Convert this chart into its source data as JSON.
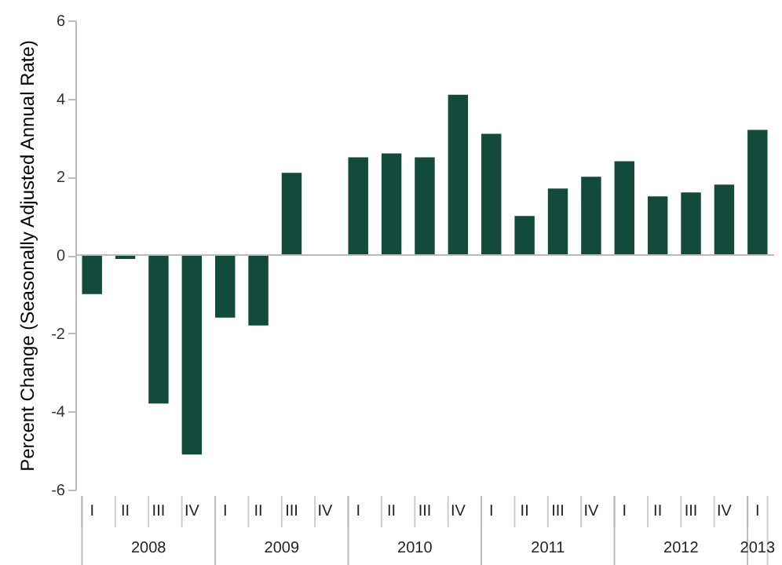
{
  "chart_data": {
    "type": "bar",
    "ylabel": "Percent Change (Seasonally Adjusted Annual Rate)",
    "categories": [
      "I",
      "II",
      "III",
      "IV",
      "I",
      "II",
      "III",
      "IV",
      "I",
      "II",
      "III",
      "IV",
      "I",
      "II",
      "III",
      "IV",
      "I",
      "II",
      "III",
      "IV",
      "I"
    ],
    "values": [
      -1.0,
      -0.1,
      -3.8,
      -5.1,
      -1.6,
      -1.8,
      2.1,
      null,
      2.5,
      2.6,
      2.5,
      4.1,
      3.1,
      1.0,
      1.7,
      2.0,
      2.4,
      1.5,
      1.6,
      1.8,
      3.2
    ],
    "color": "#124a3c",
    "ylim": [
      -6,
      6
    ],
    "yticks": [
      -6,
      -4,
      -2,
      0,
      2,
      4,
      6
    ],
    "annotations": [
      "2008",
      "2009",
      "2010",
      "2011",
      "2012",
      "2013"
    ]
  }
}
